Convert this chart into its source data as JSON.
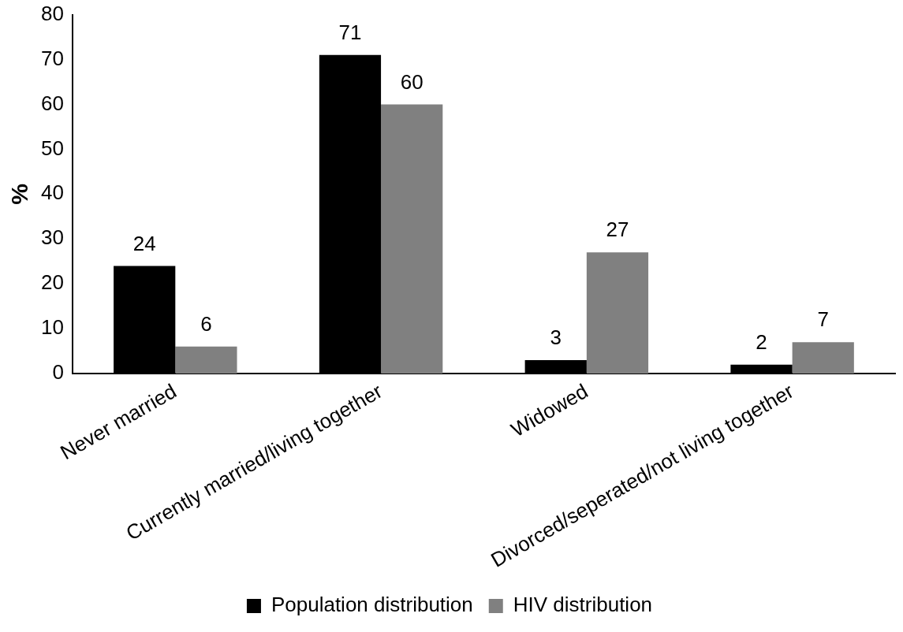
{
  "chart_data": {
    "type": "bar",
    "ylabel": "%",
    "categories": [
      "Never married",
      "Currently married/living together",
      "Widowed",
      "Divorced/seperated/not living together"
    ],
    "series": [
      {
        "name": "Population distribution",
        "color": "#000000",
        "values": [
          24,
          71,
          3,
          2
        ]
      },
      {
        "name": "HIV distribution",
        "color": "#808080",
        "values": [
          6,
          60,
          27,
          7
        ]
      }
    ],
    "ylim": [
      0,
      80
    ],
    "yticks": [
      0,
      10,
      20,
      30,
      40,
      50,
      60,
      70,
      80
    ],
    "grid": false,
    "legend": "bottom",
    "data_labels": true
  }
}
